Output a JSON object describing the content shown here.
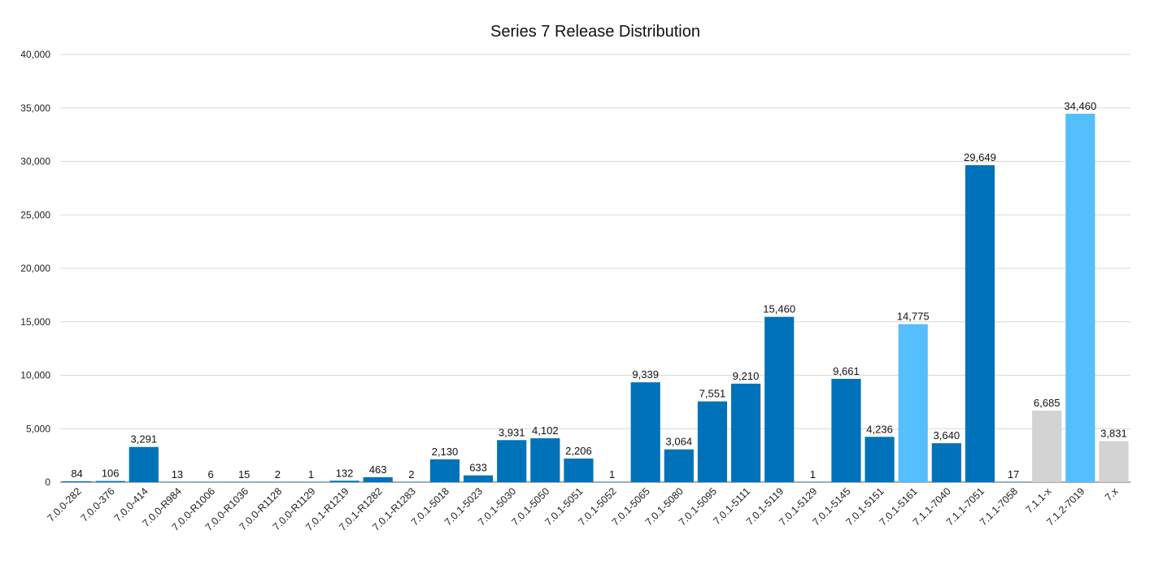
{
  "chart_data": {
    "type": "bar",
    "title": "Series 7 Release Distribution",
    "xlabel": "",
    "ylabel": "",
    "ylim": [
      0,
      40000
    ],
    "yticks": [
      0,
      5000,
      10000,
      15000,
      20000,
      25000,
      30000,
      35000,
      40000
    ],
    "ytick_labels": [
      "0",
      "5,000",
      "10,000",
      "15,000",
      "20,000",
      "25,000",
      "30,000",
      "35,000",
      "40,000"
    ],
    "grid": true,
    "legend": "none",
    "colors": {
      "dark_blue": "#0072BA",
      "light_blue": "#55BEFD",
      "gray": "#D3D3D3"
    },
    "categories": [
      "7.0.0-282",
      "7.0.0-376",
      "7.0.0-414",
      "7.0.0-R984",
      "7.0.0-R1006",
      "7.0.0-R1036",
      "7.0.0-R1128",
      "7.0.0-R1129",
      "7.0.1-R1219",
      "7.0.1-R1282",
      "7.0.1-R1283",
      "7.0.1-5018",
      "7.0.1-5023",
      "7.0.1-5030",
      "7.0.1-5050",
      "7.0.1-5051",
      "7.0.1-5052",
      "7.0.1-5065",
      "7.0.1-5080",
      "7.0.1-5095",
      "7.0.1-5111",
      "7.0.1-5119",
      "7.0.1-5129",
      "7.0.1-5145",
      "7.0.1-5151",
      "7.0.1-5161",
      "7.1.1-7040",
      "7.1.1-7051",
      "7.1.1-7058",
      "7.1.1-x",
      "7.1.2-7019",
      "7.x"
    ],
    "values": [
      84,
      106,
      3291,
      13,
      6,
      15,
      2,
      1,
      132,
      463,
      2,
      2130,
      633,
      3931,
      4102,
      2206,
      1,
      9339,
      3064,
      7551,
      9210,
      15460,
      1,
      9661,
      4236,
      14775,
      3640,
      29649,
      17,
      6685,
      34460,
      3831
    ],
    "value_labels": [
      "84",
      "106",
      "3,291",
      "13",
      "6",
      "15",
      "2",
      "1",
      "132",
      "463",
      "2",
      "2,130",
      "633",
      "3,931",
      "4,102",
      "2,206",
      "1",
      "9,339",
      "3,064",
      "7,551",
      "9,210",
      "15,460",
      "1",
      "9,661",
      "4,236",
      "14,775",
      "3,640",
      "29,649",
      "17",
      "6,685",
      "34,460",
      "3,831"
    ],
    "bar_colors": [
      "dark_blue",
      "dark_blue",
      "dark_blue",
      "dark_blue",
      "dark_blue",
      "dark_blue",
      "dark_blue",
      "dark_blue",
      "dark_blue",
      "dark_blue",
      "dark_blue",
      "dark_blue",
      "dark_blue",
      "dark_blue",
      "dark_blue",
      "dark_blue",
      "dark_blue",
      "dark_blue",
      "dark_blue",
      "dark_blue",
      "dark_blue",
      "dark_blue",
      "dark_blue",
      "dark_blue",
      "dark_blue",
      "light_blue",
      "dark_blue",
      "dark_blue",
      "dark_blue",
      "gray",
      "light_blue",
      "gray"
    ]
  }
}
